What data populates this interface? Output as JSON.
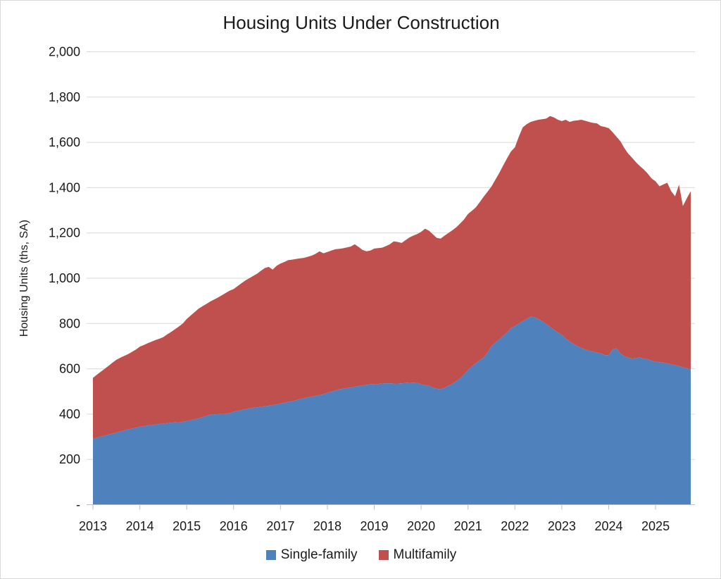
{
  "chart": {
    "title": "Housing Units Under Construction",
    "y_axis_title": "Housing Units (ths, SA)"
  },
  "chart_data": {
    "type": "area",
    "stacked": true,
    "title": "Housing Units Under Construction",
    "ylabel": "Housing Units (ths, SA)",
    "xlabel": "",
    "grid": true,
    "legend_position": "bottom",
    "ylim": [
      0,
      2000
    ],
    "x_unit": "month",
    "x_start": "2013-01",
    "x_end": "2025-10",
    "x_tick_labels": [
      "2013",
      "2014",
      "2015",
      "2016",
      "2017",
      "2018",
      "2019",
      "2020",
      "2021",
      "2022",
      "2023",
      "2024",
      "2025"
    ],
    "y_ticks": [
      {
        "value": 2000,
        "label": "2,000"
      },
      {
        "value": 1800,
        "label": "1,800"
      },
      {
        "value": 1600,
        "label": "1,600"
      },
      {
        "value": 1400,
        "label": "1,400"
      },
      {
        "value": 1200,
        "label": "1,200"
      },
      {
        "value": 1000,
        "label": "1,000"
      },
      {
        "value": 800,
        "label": "800"
      },
      {
        "value": 600,
        "label": "600"
      },
      {
        "value": 400,
        "label": "400"
      },
      {
        "value": 200,
        "label": "200"
      },
      {
        "value": 0,
        "label": "-"
      }
    ],
    "series": [
      {
        "name": "Single-family",
        "color": "#4F81BD",
        "values": [
          290,
          296,
          301,
          305,
          310,
          314,
          318,
          323,
          328,
          332,
          336,
          340,
          344,
          347,
          350,
          352,
          354,
          356,
          358,
          360,
          362,
          363,
          364,
          366,
          369,
          373,
          377,
          381,
          386,
          392,
          397,
          399,
          400,
          401,
          402,
          404,
          410,
          414,
          418,
          422,
          425,
          428,
          430,
          432,
          435,
          437,
          440,
          443,
          447,
          450,
          454,
          457,
          461,
          466,
          470,
          474,
          477,
          480,
          484,
          488,
          494,
          499,
          504,
          509,
          512,
          515,
          517,
          521,
          524,
          527,
          529,
          531,
          531,
          533,
          535,
          536,
          536,
          535,
          535,
          536,
          537,
          538,
          539,
          538,
          531,
          528,
          525,
          518,
          512,
          510,
          516,
          525,
          534,
          545,
          558,
          575,
          594,
          610,
          625,
          638,
          650,
          672,
          700,
          716,
          730,
          745,
          760,
          780,
          788,
          800,
          810,
          820,
          830,
          828,
          820,
          810,
          798,
          785,
          772,
          760,
          750,
          735,
          720,
          710,
          700,
          692,
          685,
          680,
          676,
          672,
          668,
          660,
          660,
          685,
          690,
          668,
          655,
          650,
          645,
          647,
          650,
          645,
          642,
          636,
          631,
          629,
          627,
          624,
          620,
          616,
          612,
          607,
          602,
          598
        ]
      },
      {
        "name": "Multifamily",
        "color": "#C0504D",
        "values": [
          270,
          278,
          286,
          295,
          303,
          313,
          322,
          326,
          329,
          333,
          339,
          345,
          354,
          358,
          363,
          368,
          373,
          377,
          382,
          392,
          401,
          412,
          423,
          434,
          451,
          462,
          473,
          484,
          490,
          494,
          500,
          507,
          515,
          524,
          533,
          541,
          542,
          551,
          560,
          568,
          575,
          582,
          590,
          601,
          610,
          613,
          598,
          612,
          618,
          622,
          626,
          625,
          624,
          622,
          620,
          621,
          623,
          628,
          635,
          622,
          622,
          623,
          624,
          621,
          620,
          621,
          623,
          629,
          614,
          598,
          590,
          591,
          600,
          600,
          600,
          606,
          614,
          628,
          625,
          620,
          631,
          642,
          649,
          657,
          674,
          691,
          685,
          676,
          666,
          665,
          672,
          675,
          678,
          680,
          684,
          685,
          690,
          688,
          688,
          698,
          710,
          710,
          705,
          719,
          735,
          753,
          770,
          780,
          790,
          825,
          856,
          860,
          860,
          867,
          880,
          892,
          907,
          931,
          938,
          940,
          944,
          965,
          970,
          985,
          997,
          1008,
          1010,
          1010,
          1010,
          1012,
          1004,
          1008,
          1003,
          960,
          935,
          937,
          920,
          900,
          887,
          865,
          845,
          835,
          820,
          804,
          797,
          777,
          787,
          798,
          764,
          746,
          801,
          712,
          751,
          786
        ]
      }
    ]
  }
}
